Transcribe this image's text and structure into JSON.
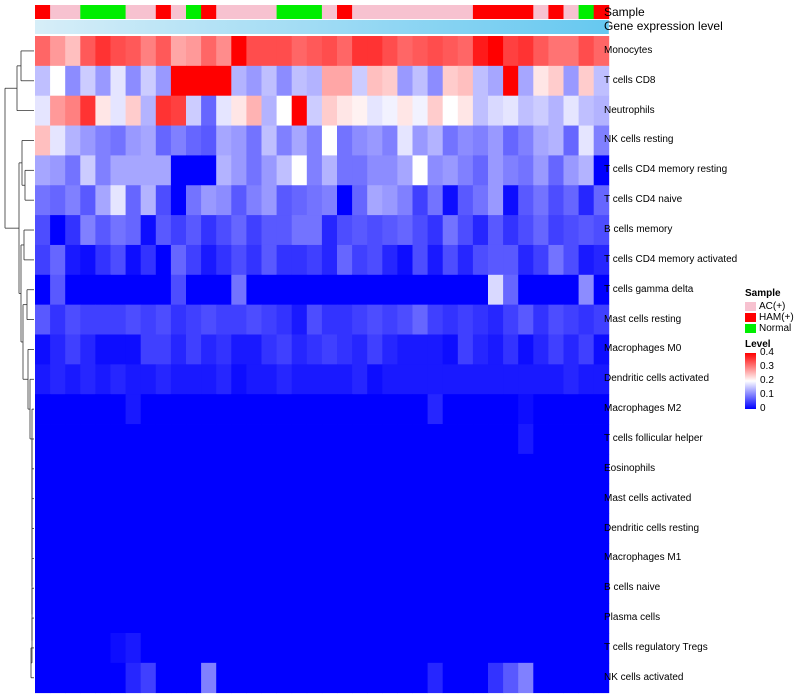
{
  "chart_data": {
    "type": "heatmap",
    "title": "",
    "annotation_tracks": [
      "Sample",
      "Gene expression level"
    ],
    "samples": [
      "HAM(+)",
      "AC(+)",
      "AC(+)",
      "Normal",
      "Normal",
      "Normal",
      "AC(+)",
      "AC(+)",
      "HAM(+)",
      "AC(+)",
      "Normal",
      "HAM(+)",
      "AC(+)",
      "AC(+)",
      "AC(+)",
      "AC(+)",
      "Normal",
      "Normal",
      "Normal",
      "AC(+)",
      "HAM(+)",
      "AC(+)",
      "AC(+)",
      "AC(+)",
      "AC(+)",
      "AC(+)",
      "AC(+)",
      "AC(+)",
      "AC(+)",
      "HAM(+)",
      "HAM(+)",
      "HAM(+)",
      "HAM(+)",
      "AC(+)",
      "HAM(+)",
      "AC(+)",
      "Normal",
      "HAM(+)"
    ],
    "rows": [
      "Monocytes",
      "T cells CD8",
      "Neutrophils",
      "NK cells resting",
      "T cells CD4 memory resting",
      "T cells CD4 naive",
      "B cells memory",
      "T cells CD4 memory activated",
      "T cells gamma delta",
      "Mast cells resting",
      "Macrophages M0",
      "Dendritic cells activated",
      "Macrophages M2",
      "T cells follicular helper",
      "Eosinophils",
      "Mast cells activated",
      "Dendritic cells resting",
      "Macrophages M1",
      "B cells naive",
      "Plasma cells",
      "T cells regulatory  Tregs",
      "NK cells activated"
    ],
    "values": [
      [
        0.32,
        0.28,
        0.25,
        0.33,
        0.36,
        0.34,
        0.33,
        0.3,
        0.33,
        0.27,
        0.28,
        0.32,
        0.29,
        0.4,
        0.34,
        0.34,
        0.34,
        0.32,
        0.33,
        0.34,
        0.32,
        0.36,
        0.36,
        0.34,
        0.32,
        0.33,
        0.34,
        0.33,
        0.32,
        0.38,
        0.4,
        0.35,
        0.36,
        0.33,
        0.31,
        0.31,
        0.34,
        0.32
      ],
      [
        0.15,
        0.2,
        0.11,
        0.16,
        0.12,
        0.18,
        0.11,
        0.16,
        0.12,
        0.4,
        0.4,
        0.4,
        0.4,
        0.14,
        0.12,
        0.15,
        0.11,
        0.15,
        0.14,
        0.27,
        0.27,
        0.16,
        0.25,
        0.24,
        0.12,
        0.15,
        0.11,
        0.24,
        0.25,
        0.15,
        0.13,
        0.4,
        0.13,
        0.22,
        0.24,
        0.12,
        0.24,
        0.15
      ],
      [
        0.18,
        0.28,
        0.3,
        0.36,
        0.22,
        0.18,
        0.24,
        0.14,
        0.36,
        0.35,
        0.16,
        0.08,
        0.18,
        0.22,
        0.26,
        0.14,
        0.2,
        0.4,
        0.16,
        0.24,
        0.22,
        0.21,
        0.18,
        0.19,
        0.22,
        0.19,
        0.24,
        0.2,
        0.22,
        0.15,
        0.17,
        0.18,
        0.15,
        0.16,
        0.14,
        0.18,
        0.15,
        0.14
      ],
      [
        0.25,
        0.18,
        0.14,
        0.12,
        0.1,
        0.09,
        0.12,
        0.13,
        0.08,
        0.1,
        0.08,
        0.07,
        0.13,
        0.12,
        0.09,
        0.15,
        0.1,
        0.13,
        0.1,
        0.2,
        0.09,
        0.11,
        0.12,
        0.1,
        0.18,
        0.12,
        0.14,
        0.09,
        0.11,
        0.1,
        0.12,
        0.08,
        0.1,
        0.13,
        0.14,
        0.08,
        0.18,
        0.1
      ],
      [
        0.13,
        0.12,
        0.09,
        0.16,
        0.1,
        0.13,
        0.13,
        0.13,
        0.13,
        0.0,
        0.0,
        0.0,
        0.14,
        0.12,
        0.09,
        0.12,
        0.15,
        0.2,
        0.1,
        0.14,
        0.09,
        0.09,
        0.11,
        0.11,
        0.13,
        0.2,
        0.11,
        0.12,
        0.1,
        0.08,
        0.12,
        0.1,
        0.09,
        0.12,
        0.08,
        0.12,
        0.14,
        0.0
      ],
      [
        0.09,
        0.08,
        0.1,
        0.07,
        0.13,
        0.18,
        0.08,
        0.14,
        0.06,
        0.0,
        0.09,
        0.12,
        0.11,
        0.07,
        0.1,
        0.12,
        0.07,
        0.08,
        0.09,
        0.1,
        0.0,
        0.08,
        0.13,
        0.12,
        0.1,
        0.05,
        0.09,
        0.01,
        0.07,
        0.09,
        0.12,
        0.01,
        0.07,
        0.09,
        0.06,
        0.08,
        0.03,
        0.08
      ],
      [
        0.06,
        0.0,
        0.04,
        0.1,
        0.07,
        0.09,
        0.08,
        0.01,
        0.07,
        0.05,
        0.07,
        0.04,
        0.06,
        0.08,
        0.05,
        0.07,
        0.07,
        0.09,
        0.09,
        0.03,
        0.06,
        0.07,
        0.06,
        0.07,
        0.08,
        0.06,
        0.04,
        0.09,
        0.06,
        0.03,
        0.07,
        0.04,
        0.06,
        0.08,
        0.05,
        0.06,
        0.07,
        0.06
      ],
      [
        0.05,
        0.08,
        0.02,
        0.01,
        0.04,
        0.06,
        0.01,
        0.04,
        0.0,
        0.08,
        0.05,
        0.02,
        0.04,
        0.06,
        0.04,
        0.07,
        0.04,
        0.04,
        0.05,
        0.03,
        0.08,
        0.05,
        0.06,
        0.03,
        0.01,
        0.06,
        0.02,
        0.06,
        0.03,
        0.06,
        0.07,
        0.07,
        0.03,
        0.05,
        0.09,
        0.06,
        0.02,
        0.03
      ],
      [
        0.0,
        0.07,
        0.0,
        0.0,
        0.0,
        0.0,
        0.0,
        0.0,
        0.0,
        0.06,
        0.0,
        0.0,
        0.0,
        0.09,
        0.0,
        0.0,
        0.0,
        0.0,
        0.0,
        0.0,
        0.0,
        0.0,
        0.0,
        0.0,
        0.0,
        0.0,
        0.0,
        0.0,
        0.0,
        0.0,
        0.17,
        0.08,
        0.0,
        0.0,
        0.0,
        0.0,
        0.11,
        0.0
      ],
      [
        0.07,
        0.04,
        0.06,
        0.05,
        0.05,
        0.05,
        0.06,
        0.05,
        0.06,
        0.04,
        0.05,
        0.06,
        0.05,
        0.05,
        0.06,
        0.05,
        0.04,
        0.02,
        0.06,
        0.04,
        0.04,
        0.05,
        0.06,
        0.05,
        0.06,
        0.08,
        0.05,
        0.04,
        0.05,
        0.04,
        0.03,
        0.05,
        0.07,
        0.04,
        0.06,
        0.05,
        0.04,
        0.05
      ],
      [
        0.01,
        0.03,
        0.05,
        0.03,
        0.01,
        0.01,
        0.01,
        0.05,
        0.05,
        0.03,
        0.05,
        0.03,
        0.04,
        0.02,
        0.02,
        0.04,
        0.05,
        0.03,
        0.04,
        0.05,
        0.04,
        0.03,
        0.05,
        0.03,
        0.02,
        0.02,
        0.02,
        0.01,
        0.05,
        0.03,
        0.02,
        0.04,
        0.01,
        0.03,
        0.05,
        0.03,
        0.05,
        0.01
      ],
      [
        0.02,
        0.03,
        0.02,
        0.03,
        0.02,
        0.03,
        0.02,
        0.02,
        0.03,
        0.02,
        0.02,
        0.02,
        0.03,
        0.01,
        0.02,
        0.02,
        0.03,
        0.02,
        0.02,
        0.02,
        0.02,
        0.03,
        0.01,
        0.02,
        0.02,
        0.02,
        0.02,
        0.02,
        0.02,
        0.02,
        0.02,
        0.02,
        0.02,
        0.02,
        0.02,
        0.03,
        0.02,
        0.02
      ],
      [
        0.0,
        0.0,
        0.0,
        0.0,
        0.0,
        0.0,
        0.02,
        0.0,
        0.0,
        0.0,
        0.0,
        0.0,
        0.0,
        0.0,
        0.0,
        0.0,
        0.0,
        0.0,
        0.0,
        0.0,
        0.0,
        0.0,
        0.0,
        0.0,
        0.0,
        0.0,
        0.03,
        0.0,
        0.0,
        0.0,
        0.0,
        0.0,
        0.01,
        0.0,
        0.0,
        0.0,
        0.0,
        0.0
      ],
      [
        0.0,
        0.0,
        0.0,
        0.0,
        0.0,
        0.0,
        0.0,
        0.0,
        0.0,
        0.0,
        0.0,
        0.0,
        0.0,
        0.0,
        0.0,
        0.0,
        0.0,
        0.0,
        0.0,
        0.0,
        0.0,
        0.0,
        0.0,
        0.0,
        0.0,
        0.0,
        0.0,
        0.0,
        0.0,
        0.0,
        0.0,
        0.0,
        0.02,
        0.0,
        0.0,
        0.0,
        0.0,
        0.0
      ],
      [
        0.0,
        0.0,
        0.0,
        0.0,
        0.0,
        0.0,
        0.0,
        0.0,
        0.0,
        0.0,
        0.0,
        0.0,
        0.0,
        0.0,
        0.0,
        0.0,
        0.0,
        0.0,
        0.0,
        0.0,
        0.0,
        0.0,
        0.0,
        0.0,
        0.0,
        0.0,
        0.0,
        0.0,
        0.0,
        0.0,
        0.0,
        0.0,
        0.0,
        0.0,
        0.0,
        0.0,
        0.0,
        0.0
      ],
      [
        0.0,
        0.0,
        0.0,
        0.0,
        0.0,
        0.0,
        0.0,
        0.0,
        0.0,
        0.0,
        0.0,
        0.0,
        0.0,
        0.0,
        0.0,
        0.0,
        0.0,
        0.0,
        0.0,
        0.0,
        0.0,
        0.0,
        0.0,
        0.0,
        0.0,
        0.0,
        0.0,
        0.0,
        0.0,
        0.0,
        0.0,
        0.0,
        0.0,
        0.0,
        0.0,
        0.0,
        0.0,
        0.0
      ],
      [
        0.0,
        0.0,
        0.0,
        0.0,
        0.0,
        0.0,
        0.0,
        0.0,
        0.0,
        0.0,
        0.0,
        0.0,
        0.0,
        0.0,
        0.0,
        0.0,
        0.0,
        0.0,
        0.0,
        0.0,
        0.0,
        0.0,
        0.0,
        0.0,
        0.0,
        0.0,
        0.0,
        0.0,
        0.0,
        0.0,
        0.0,
        0.0,
        0.0,
        0.0,
        0.0,
        0.0,
        0.0,
        0.0
      ],
      [
        0.0,
        0.0,
        0.0,
        0.0,
        0.0,
        0.0,
        0.0,
        0.0,
        0.0,
        0.0,
        0.0,
        0.0,
        0.0,
        0.0,
        0.0,
        0.0,
        0.0,
        0.0,
        0.0,
        0.0,
        0.0,
        0.0,
        0.0,
        0.0,
        0.0,
        0.0,
        0.0,
        0.0,
        0.0,
        0.0,
        0.0,
        0.0,
        0.0,
        0.0,
        0.0,
        0.0,
        0.0,
        0.0
      ],
      [
        0.0,
        0.0,
        0.0,
        0.0,
        0.0,
        0.0,
        0.0,
        0.0,
        0.0,
        0.0,
        0.0,
        0.0,
        0.0,
        0.0,
        0.0,
        0.0,
        0.0,
        0.0,
        0.0,
        0.0,
        0.0,
        0.0,
        0.0,
        0.0,
        0.0,
        0.0,
        0.0,
        0.0,
        0.0,
        0.0,
        0.0,
        0.0,
        0.0,
        0.0,
        0.0,
        0.0,
        0.0,
        0.0
      ],
      [
        0.0,
        0.0,
        0.0,
        0.0,
        0.0,
        0.0,
        0.0,
        0.0,
        0.0,
        0.0,
        0.0,
        0.0,
        0.0,
        0.0,
        0.0,
        0.0,
        0.0,
        0.0,
        0.0,
        0.0,
        0.0,
        0.0,
        0.0,
        0.0,
        0.0,
        0.0,
        0.0,
        0.0,
        0.0,
        0.0,
        0.0,
        0.0,
        0.0,
        0.0,
        0.0,
        0.0,
        0.0,
        0.0
      ],
      [
        0.0,
        0.0,
        0.0,
        0.0,
        0.0,
        0.01,
        0.02,
        0.0,
        0.0,
        0.0,
        0.0,
        0.0,
        0.0,
        0.0,
        0.0,
        0.0,
        0.0,
        0.0,
        0.0,
        0.0,
        0.0,
        0.0,
        0.0,
        0.0,
        0.0,
        0.0,
        0.0,
        0.0,
        0.0,
        0.0,
        0.0,
        0.0,
        0.0,
        0.0,
        0.0,
        0.0,
        0.0,
        0.0
      ],
      [
        0.0,
        0.0,
        0.0,
        0.0,
        0.0,
        0.0,
        0.03,
        0.05,
        0.0,
        0.0,
        0.0,
        0.1,
        0.0,
        0.0,
        0.0,
        0.0,
        0.0,
        0.0,
        0.0,
        0.0,
        0.0,
        0.0,
        0.0,
        0.0,
        0.0,
        0.0,
        0.03,
        0.0,
        0.0,
        0.0,
        0.04,
        0.07,
        0.1,
        0.0,
        0.0,
        0.0,
        0.0,
        0.0
      ]
    ],
    "legend": {
      "sample_title": "Sample",
      "sample_items": [
        {
          "label": "AC(+)",
          "color": "#f7c2d0"
        },
        {
          "label": "HAM(+)",
          "color": "#ff0000"
        },
        {
          "label": "Normal",
          "color": "#00ee00"
        }
      ],
      "level_title": "Level",
      "level_ticks": [
        "0.4",
        "0.3",
        "0.2",
        "0.1",
        "0"
      ],
      "level_range": [
        0,
        0.4
      ]
    },
    "expression_track_colors": {
      "low": "#d7eef8",
      "high": "#66c8f0"
    },
    "colors": {
      "low": "#0000ff",
      "mid": "#ffffff",
      "high": "#ff0000"
    }
  }
}
